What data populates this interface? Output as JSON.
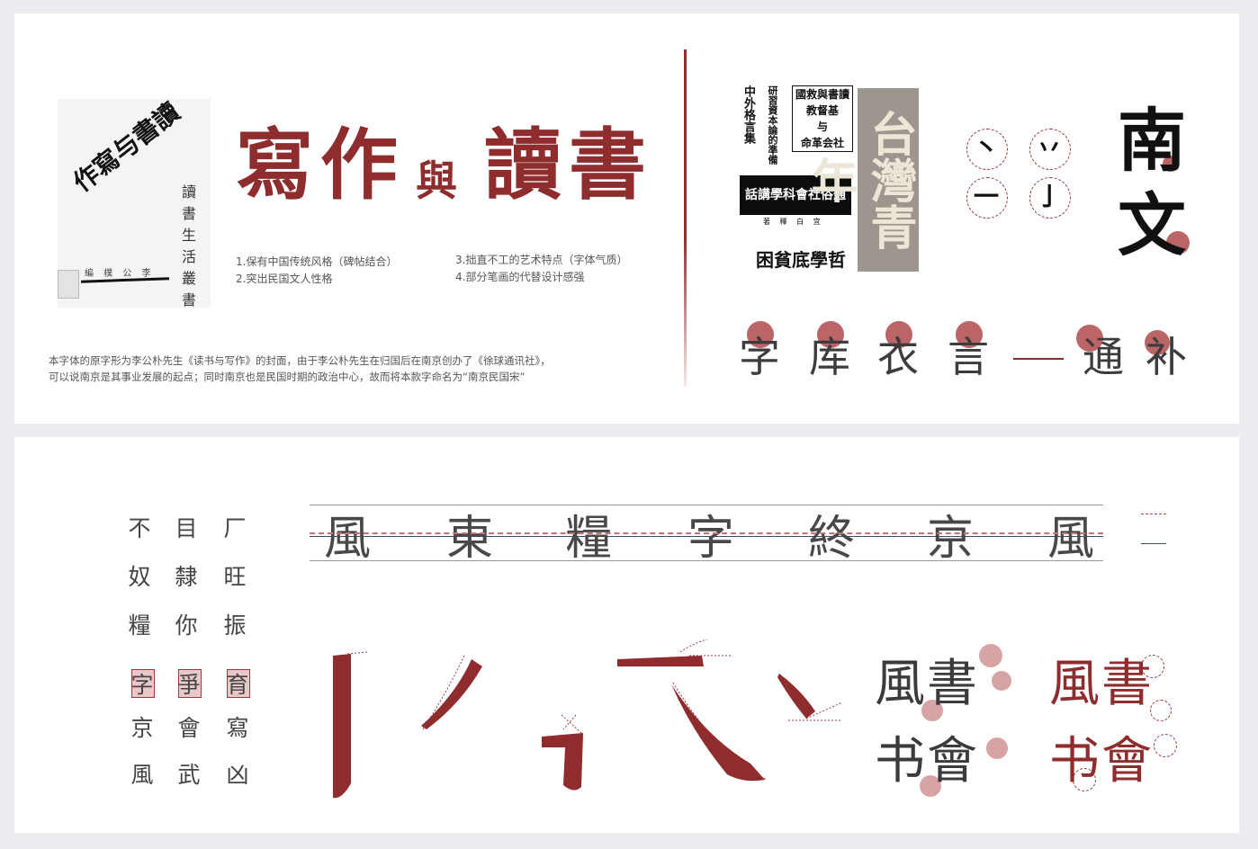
{
  "colors": {
    "accent": "#8e2c2e",
    "text_dark": "#3c3a3a",
    "background": "#ecedf1",
    "panel": "#ffffff"
  },
  "cover": {
    "title": "作寫与書讀",
    "vertical_text": "讀書生活叢書",
    "publisher": "編 樸 公 李"
  },
  "headline": {
    "left": "寫作",
    "mid": "與",
    "right": "讀書"
  },
  "features": [
    "1.保有中国传统风格（碑帖结合）",
    "2.突出民国文人性格",
    "3.拙直不工的艺术特点（字体气质）",
    "4.部分笔画的代替设计感强"
  ],
  "description": [
    "本字体的原字形为李公朴先生《读书与写作》的封面，由于李公朴先生在归国后在南京创办了《徐球通讯社》，",
    "可以说南京是其事业发展的起点；同时南京也是民国时期的政治中心，故而将本款字命名为“南京民国宋”"
  ],
  "clippings": {
    "vertical_1": "中外格言集",
    "vertical_2": "研習資本論的準備",
    "box_title": "國救與書讀",
    "box_lines": [
      "教督基",
      "与",
      "命革会社"
    ],
    "bar": "話講學科會社俗通",
    "bar_caption": "著 釋 白 宜",
    "bottom": "困貧底學哲",
    "plate": "台灣青年"
  },
  "stroke_fragments": [
    "丶",
    "丷",
    "一",
    "亅"
  ],
  "big_chars": [
    "南",
    "文"
  ],
  "char_row": [
    "字",
    "库",
    "衣",
    "言",
    "通",
    "补"
  ],
  "grid_row": [
    "風",
    "東",
    "糧",
    "字",
    "終",
    "京",
    "風"
  ],
  "char_grid": [
    [
      "不",
      "目",
      "厂"
    ],
    [
      "奴",
      "隸",
      "旺"
    ],
    [
      "糧",
      "你",
      "振"
    ],
    [
      "字",
      "爭",
      "育"
    ],
    [
      "京",
      "會",
      "寫"
    ],
    [
      "風",
      "武",
      "凶"
    ]
  ],
  "samples": {
    "dark": [
      "風書",
      "书會"
    ],
    "red": [
      "風書",
      "书會"
    ]
  }
}
